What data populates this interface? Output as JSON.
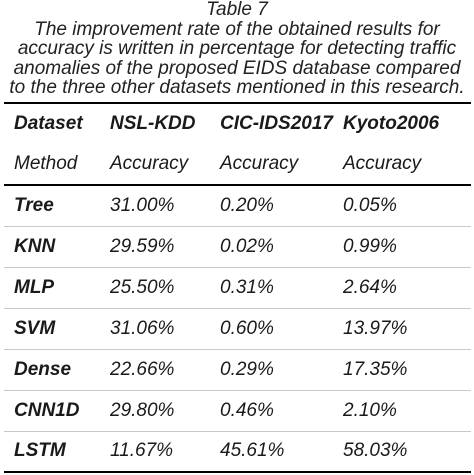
{
  "caption": {
    "title": "Table 7",
    "lines": [
      "The improvement rate of the obtained results for",
      "accuracy is written in percentage for detecting traffic",
      "anomalies of the proposed EIDS database compared",
      "to the three other datasets mentioned in this research."
    ]
  },
  "table": {
    "header": [
      "Dataset",
      "NSL-KDD",
      "CIC-IDS2017",
      "Kyoto2006"
    ],
    "subheader": [
      "Method",
      "Accuracy",
      "Accuracy",
      "Accuracy"
    ],
    "rows": [
      [
        "Tree",
        "31.00%",
        "0.20%",
        "0.05%"
      ],
      [
        "KNN",
        "29.59%",
        "0.02%",
        "0.99%"
      ],
      [
        "MLP",
        "25.50%",
        "0.31%",
        "2.64%"
      ],
      [
        "SVM",
        "31.06%",
        "0.60%",
        "13.97%"
      ],
      [
        "Dense",
        "22.66%",
        "0.29%",
        "17.35%"
      ],
      [
        "CNN1D",
        "29.80%",
        "0.46%",
        "2.10%"
      ],
      [
        "LSTM",
        "11.67%",
        "45.61%",
        "58.03%"
      ]
    ]
  }
}
